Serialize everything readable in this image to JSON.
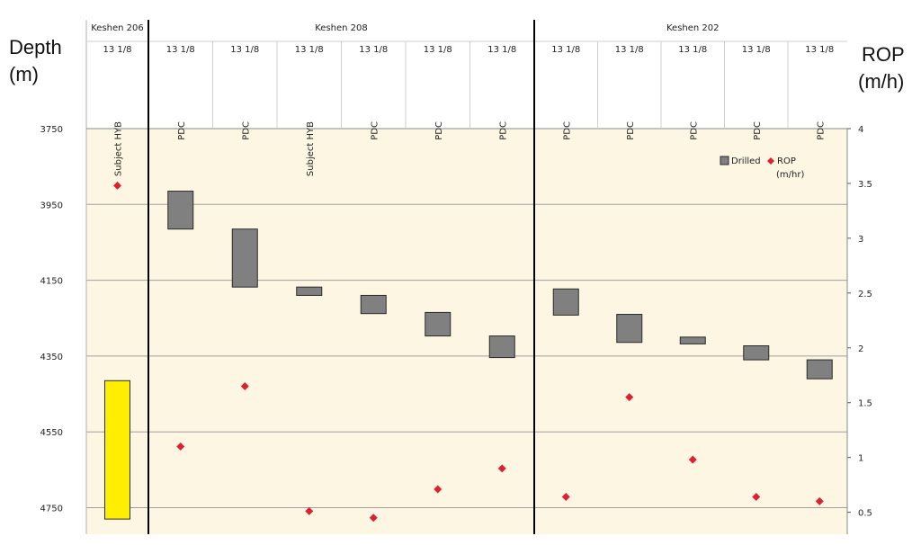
{
  "chart_data": {
    "type": "range-bar-scatter",
    "title": "",
    "left_axis": {
      "label_line1": "Depth",
      "label_line2": "(m)",
      "min": 3750,
      "max": 4820,
      "ticks": [
        3750,
        3950,
        4150,
        4350,
        4550,
        4750
      ],
      "inverted": true
    },
    "right_axis": {
      "label_line1": "ROP",
      "label_line2": "(m/h)",
      "min": 0.3,
      "max": 4,
      "ticks": [
        "4",
        "3.5",
        "3",
        "2.5",
        "2",
        "1.5",
        "1",
        "0.5"
      ],
      "tick_values": [
        4,
        3.5,
        3,
        2.5,
        2,
        1.5,
        1,
        0.5
      ]
    },
    "groups": [
      {
        "name": "Keshen 206",
        "columns": 1
      },
      {
        "name": "Keshen 208",
        "columns": 6
      },
      {
        "name": "Keshen 202",
        "columns": 5
      }
    ],
    "columns": [
      {
        "well": "Keshen 206",
        "size": "13 1/8",
        "bit": "Subject HYB",
        "drilled_top": 4415,
        "drilled_bottom": 4780,
        "rop": 3.48,
        "highlight": true
      },
      {
        "well": "Keshen 208",
        "size": "13 1/8",
        "bit": "PDC",
        "drilled_top": 3915,
        "drilled_bottom": 4015,
        "rop": 1.1,
        "highlight": false
      },
      {
        "well": "Keshen 208",
        "size": "13 1/8",
        "bit": "PDC",
        "drilled_top": 4015,
        "drilled_bottom": 4168,
        "rop": 1.65,
        "highlight": false
      },
      {
        "well": "Keshen 208",
        "size": "13 1/8",
        "bit": "Subject HYB",
        "drilled_top": 4168,
        "drilled_bottom": 4190,
        "rop": 0.51,
        "highlight": false
      },
      {
        "well": "Keshen 208",
        "size": "13 1/8",
        "bit": "PDC",
        "drilled_top": 4190,
        "drilled_bottom": 4238,
        "rop": 0.45,
        "highlight": false
      },
      {
        "well": "Keshen 208",
        "size": "13 1/8",
        "bit": "PDC",
        "drilled_top": 4235,
        "drilled_bottom": 4297,
        "rop": 0.71,
        "highlight": false
      },
      {
        "well": "Keshen 208",
        "size": "13 1/8",
        "bit": "PDC",
        "drilled_top": 4297,
        "drilled_bottom": 4354,
        "rop": 0.9,
        "highlight": false
      },
      {
        "well": "Keshen 202",
        "size": "13 1/8",
        "bit": "PDC",
        "drilled_top": 4173,
        "drilled_bottom": 4242,
        "rop": 0.64,
        "highlight": false
      },
      {
        "well": "Keshen 202",
        "size": "13 1/8",
        "bit": "PDC",
        "drilled_top": 4240,
        "drilled_bottom": 4314,
        "rop": 1.55,
        "highlight": false
      },
      {
        "well": "Keshen 202",
        "size": "13 1/8",
        "bit": "PDC",
        "drilled_top": 4300,
        "drilled_bottom": 4318,
        "rop": 0.98,
        "highlight": false
      },
      {
        "well": "Keshen 202",
        "size": "13 1/8",
        "bit": "PDC",
        "drilled_top": 4323,
        "drilled_bottom": 4360,
        "rop": 0.64,
        "highlight": false
      },
      {
        "well": "Keshen 202",
        "size": "13 1/8",
        "bit": "PDC",
        "drilled_top": 4360,
        "drilled_bottom": 4410,
        "rop": 0.6,
        "highlight": false
      }
    ],
    "legend": {
      "position": "top-right",
      "drilled": "Drilled",
      "rop_line1": "ROP",
      "rop_line2": "(m/hr)"
    },
    "grid": true,
    "colors": {
      "plot_bg": "#fdf6e3",
      "bar": "#808080",
      "bar_border": "#2a2a2a",
      "highlight_bar": "#ffee00",
      "marker": "#e02030",
      "grid": "#a0a0a0",
      "separator": "#000000"
    }
  }
}
